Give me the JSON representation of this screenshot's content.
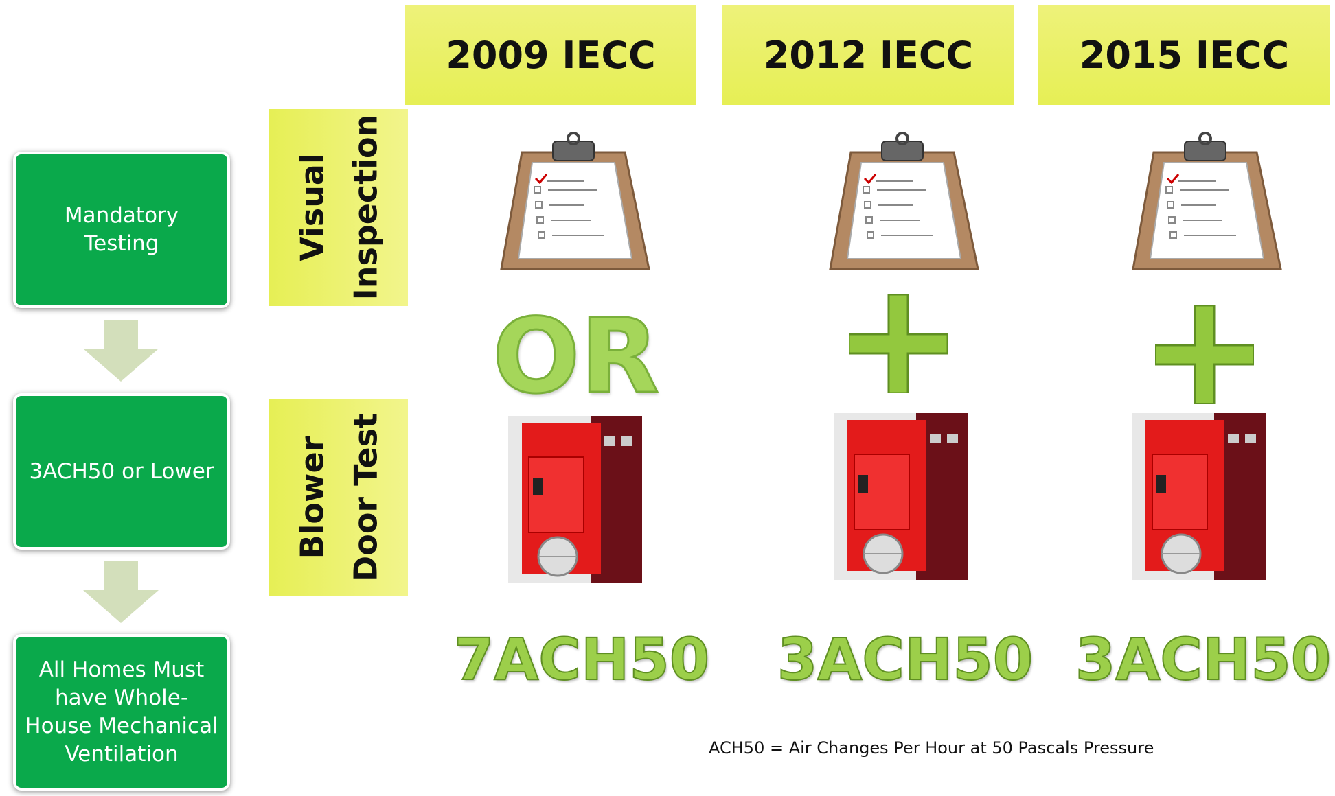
{
  "columns": [
    {
      "title": "2009 IECC",
      "connector": "OR",
      "result": "7ACH50"
    },
    {
      "title": "2012 IECC",
      "result": "3ACH50"
    },
    {
      "title": "2015 IECC",
      "result": "3ACH50"
    }
  ],
  "row_labels": [
    {
      "lines": [
        "Visual",
        "Inspection"
      ]
    },
    {
      "lines": [
        "Blower",
        "Door Test"
      ]
    }
  ],
  "flow": [
    "Mandatory Testing",
    "3ACH50 or Lower",
    "All Homes Must have Whole-House Mechanical Ventilation"
  ],
  "footnote": "ACH50 = Air Changes Per Hour at 50 Pascals Pressure"
}
